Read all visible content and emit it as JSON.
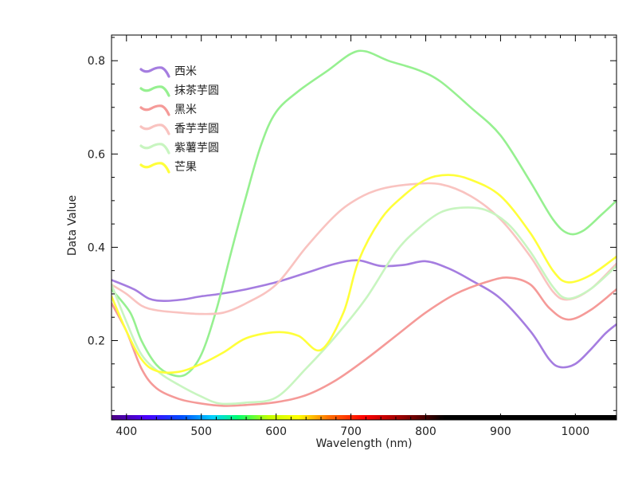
{
  "chart_data": {
    "type": "line",
    "title": "",
    "xlabel": "Wavelength (nm)",
    "ylabel": "Data Value",
    "xlim": [
      380,
      1055
    ],
    "ylim": [
      0.03,
      0.855
    ],
    "xticks": [
      400,
      500,
      600,
      700,
      800,
      900,
      1000
    ],
    "yticks": [
      0.2,
      0.4,
      0.6,
      0.8
    ],
    "xtick_labels": [
      "400",
      "500",
      "600",
      "700",
      "800",
      "900",
      "1000"
    ],
    "ytick_labels": [
      "0.2",
      "0.4",
      "0.6",
      "0.8"
    ],
    "grid": false,
    "legend_position": "top-left",
    "spectrum_bar": true,
    "series": [
      {
        "name": "西米",
        "color": "#a57de0",
        "x": [
          380,
          410,
          430,
          450,
          475,
          500,
          525,
          560,
          600,
          640,
          680,
          710,
          740,
          770,
          800,
          830,
          860,
          900,
          940,
          965,
          980,
          1000,
          1020,
          1040,
          1055
        ],
        "y": [
          0.33,
          0.31,
          0.29,
          0.285,
          0.288,
          0.295,
          0.3,
          0.31,
          0.325,
          0.345,
          0.365,
          0.372,
          0.36,
          0.362,
          0.37,
          0.355,
          0.33,
          0.29,
          0.22,
          0.16,
          0.143,
          0.15,
          0.18,
          0.215,
          0.235
        ]
      },
      {
        "name": "抹茶芋圆",
        "color": "#96f090",
        "x": [
          380,
          405,
          420,
          440,
          460,
          480,
          500,
          520,
          540,
          560,
          580,
          600,
          630,
          670,
          700,
          720,
          750,
          790,
          820,
          860,
          900,
          940,
          970,
          990,
          1010,
          1035,
          1055
        ],
        "y": [
          0.31,
          0.26,
          0.2,
          0.148,
          0.127,
          0.128,
          0.17,
          0.265,
          0.39,
          0.51,
          0.62,
          0.69,
          0.735,
          0.78,
          0.815,
          0.82,
          0.8,
          0.78,
          0.755,
          0.7,
          0.64,
          0.54,
          0.46,
          0.43,
          0.435,
          0.47,
          0.5
        ]
      },
      {
        "name": "黑米",
        "color": "#f59a98",
        "x": [
          380,
          400,
          420,
          440,
          470,
          500,
          530,
          560,
          600,
          640,
          680,
          720,
          760,
          800,
          840,
          880,
          910,
          940,
          965,
          990,
          1020,
          1055
        ],
        "y": [
          0.28,
          0.22,
          0.14,
          0.098,
          0.075,
          0.065,
          0.06,
          0.062,
          0.068,
          0.083,
          0.115,
          0.16,
          0.21,
          0.26,
          0.3,
          0.325,
          0.335,
          0.32,
          0.27,
          0.245,
          0.265,
          0.31
        ]
      },
      {
        "name": "香芋芋圆",
        "color": "#f9c3c0",
        "x": [
          380,
          400,
          420,
          440,
          470,
          500,
          530,
          560,
          600,
          640,
          680,
          710,
          740,
          780,
          820,
          860,
          900,
          940,
          970,
          990,
          1020,
          1055
        ],
        "y": [
          0.32,
          0.3,
          0.275,
          0.265,
          0.26,
          0.257,
          0.26,
          0.28,
          0.32,
          0.4,
          0.47,
          0.505,
          0.525,
          0.535,
          0.535,
          0.51,
          0.46,
          0.38,
          0.305,
          0.288,
          0.31,
          0.365
        ]
      },
      {
        "name": "紫薯芋圆",
        "color": "#c8f5c0",
        "x": [
          380,
          400,
          420,
          445,
          470,
          500,
          525,
          560,
          600,
          640,
          680,
          720,
          760,
          790,
          820,
          850,
          880,
          910,
          940,
          970,
          990,
          1020,
          1055
        ],
        "y": [
          0.32,
          0.24,
          0.17,
          0.13,
          0.105,
          0.08,
          0.065,
          0.067,
          0.078,
          0.14,
          0.21,
          0.29,
          0.39,
          0.44,
          0.475,
          0.485,
          0.48,
          0.45,
          0.39,
          0.315,
          0.29,
          0.31,
          0.36
        ]
      },
      {
        "name": "芒果",
        "color": "#ffff3a",
        "x": [
          380,
          400,
          420,
          440,
          470,
          500,
          530,
          560,
          600,
          630,
          660,
          690,
          710,
          740,
          770,
          800,
          830,
          860,
          900,
          940,
          970,
          990,
          1020,
          1055
        ],
        "y": [
          0.295,
          0.22,
          0.16,
          0.135,
          0.133,
          0.15,
          0.175,
          0.205,
          0.218,
          0.21,
          0.18,
          0.26,
          0.37,
          0.46,
          0.51,
          0.545,
          0.555,
          0.545,
          0.51,
          0.43,
          0.35,
          0.325,
          0.34,
          0.38
        ]
      }
    ]
  }
}
